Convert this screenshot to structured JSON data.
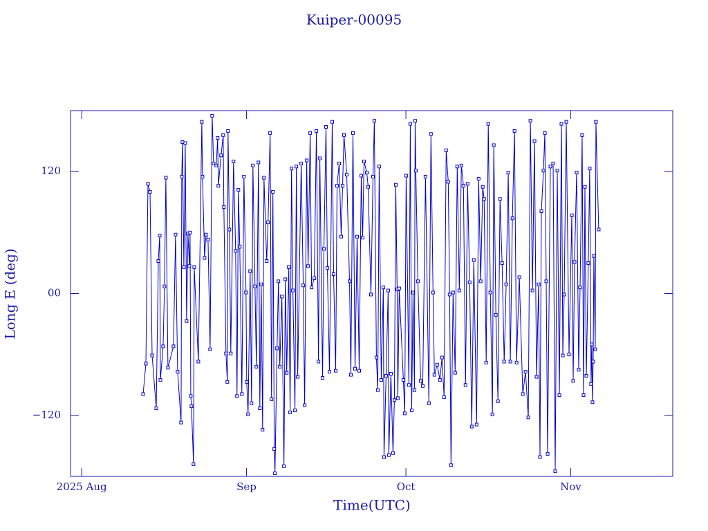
{
  "chart_data": {
    "type": "line",
    "title": "Kuiper-00095",
    "xlabel": "Time(UTC)",
    "ylabel": "Long E (deg)",
    "color": "#0000cc",
    "markers": true,
    "xlim": [
      -2.1,
      111.2
    ],
    "xticks": [
      {
        "value": 0,
        "label": "2025 Aug"
      },
      {
        "value": 31,
        "label": "Sep"
      },
      {
        "value": 61,
        "label": "Oct"
      },
      {
        "value": 92,
        "label": "Nov"
      }
    ],
    "ylim": [
      -180,
      180
    ],
    "yticks": [
      {
        "value": -120,
        "label": "−120"
      },
      {
        "value": 0,
        "label": "00"
      },
      120
    ],
    "x": [
      11.56,
      12.08,
      12.47,
      12.86,
      13.25,
      14.03,
      14.42,
      14.68,
      14.81,
      15.32,
      15.58,
      15.84,
      16.23,
      17.27,
      17.66,
      18.05,
      18.7,
      18.83,
      18.96,
      19.22,
      19.48,
      19.74,
      20.0,
      20.26,
      20.39,
      20.52,
      20.65,
      21.04,
      21.17,
      21.95,
      22.6,
      22.73,
      23.12,
      23.38,
      23.77,
      24.16,
      24.55,
      24.81,
      25.32,
      25.58,
      25.71,
      26.23,
      26.62,
      26.75,
      27.14,
      27.4,
      27.53,
      27.79,
      28.05,
      28.57,
      28.96,
      29.22,
      29.48,
      29.74,
      30.13,
      30.52,
      30.91,
      31.04,
      31.3,
      31.69,
      31.95,
      32.21,
      32.6,
      32.86,
      33.25,
      33.51,
      33.77,
      34.03,
      34.29,
      34.81,
      35.06,
      35.45,
      35.71,
      35.97,
      36.23,
      36.36,
      36.75,
      37.01,
      37.27,
      37.66,
      38.05,
      38.31,
      38.57,
      38.96,
      39.22,
      39.48,
      39.74,
      40.13,
      40.39,
      40.65,
      41.3,
      41.69,
      41.95,
      42.34,
      42.6,
      42.99,
      43.25,
      43.77,
      44.16,
      44.55,
      44.81,
      45.32,
      45.58,
      45.97,
      46.23,
      46.62,
      47.14,
      47.4,
      47.79,
      48.05,
      48.44,
      48.83,
      49.09,
      49.35,
      49.87,
      50.39,
      50.65,
      51.04,
      51.43,
      51.82,
      52.21,
      52.6,
      52.86,
      53.12,
      53.64,
      53.9,
      54.42,
      54.81,
      55.06,
      55.45,
      55.71,
      55.97,
      56.36,
      56.75,
      56.88,
      57.27,
      57.66,
      57.79,
      58.18,
      58.57,
      58.83,
      59.09,
      59.35,
      59.48,
      59.74,
      60.52,
      60.78,
      61.04,
      61.56,
      61.82,
      62.08,
      62.34,
      62.6,
      62.73,
      62.86,
      63.25,
      63.77,
      64.16,
      64.68,
      65.32,
      65.71,
      66.1,
      66.36,
      66.88,
      67.4,
      67.79,
      68.18,
      68.57,
      68.96,
      69.22,
      69.48,
      69.87,
      70.26,
      70.65,
      71.04,
      71.43,
      71.82,
      72.21,
      72.6,
      72.99,
      73.38,
      73.77,
      74.29,
      74.68,
      75.06,
      75.45,
      75.71,
      76.1,
      76.49,
      76.88,
      77.27,
      77.53,
      77.92,
      78.31,
      78.7,
      79.09,
      79.48,
      79.87,
      80.26,
      80.65,
      81.04,
      81.43,
      81.82,
      82.34,
      82.99,
      83.51,
      84.03,
      84.42,
      84.81,
      85.19,
      85.58,
      85.97,
      86.23,
      86.49,
      86.88,
      87.14,
      87.4,
      87.66,
      88.18,
      88.7,
      89.09,
      89.48,
      89.87,
      90.26,
      90.52,
      90.78,
      91.17,
      91.69,
      92.21,
      92.47,
      92.73,
      93.12,
      93.51,
      93.77,
      94.16,
      94.42,
      94.68,
      94.94,
      95.32,
      95.58,
      95.84,
      95.97,
      96.1,
      96.23,
      96.36,
      96.62,
      96.75,
      97.27
    ],
    "values": [
      -99,
      -69,
      108,
      100,
      -61,
      -113,
      32,
      57,
      -85,
      -52,
      7,
      114,
      -73,
      -52,
      58,
      -77,
      -127,
      115,
      149,
      26,
      148,
      -27,
      59,
      27,
      60,
      -101,
      -111,
      -168,
      26,
      -67,
      169,
      115,
      35,
      58,
      53,
      -55,
      175,
      128,
      126,
      153,
      106,
      136,
      156,
      85,
      -59,
      -87,
      160,
      63,
      -59,
      130,
      42,
      -101,
      102,
      46,
      -99,
      115,
      1,
      -87,
      -119,
      22,
      -108,
      126,
      7,
      -72,
      129,
      -113,
      9,
      -134,
      114,
      32,
      70,
      158,
      -104,
      100,
      -153,
      -177,
      -54,
      12,
      -72,
      -3,
      -170,
      14,
      -78,
      26,
      -117,
      123,
      3,
      -115,
      125,
      -82,
      128,
      8,
      -110,
      131,
      27,
      158,
      6,
      15,
      160,
      -67,
      133,
      -83,
      44,
      164,
      25,
      -77,
      169,
      19,
      -76,
      106,
      128,
      56,
      106,
      156,
      117,
      12,
      -80,
      158,
      -74,
      56,
      -76,
      116,
      55,
      130,
      119,
      105,
      -1,
      115,
      170,
      -63,
      -95,
      125,
      -85,
      6,
      -161,
      -81,
      3,
      -159,
      -79,
      -157,
      -105,
      107,
      4,
      -103,
      5,
      -85,
      -118,
      116,
      -90,
      167,
      -115,
      1,
      -95,
      170,
      121,
      12,
      -86,
      -91,
      115,
      -108,
      157,
      1,
      -80,
      -70,
      -85,
      -63,
      -102,
      141,
      110,
      -1,
      -169,
      1,
      -78,
      125,
      3,
      126,
      106,
      -90,
      108,
      11,
      -131,
      33,
      -129,
      113,
      12,
      105,
      93,
      -68,
      167,
      1,
      -119,
      146,
      -21,
      -106,
      93,
      30,
      -67,
      9,
      119,
      -67,
      74,
      160,
      -68,
      16,
      -99,
      -77,
      -122,
      170,
      3,
      150,
      -82,
      9,
      -161,
      81,
      121,
      158,
      12,
      -158,
      125,
      128,
      -175,
      121,
      -100,
      167,
      -61,
      -1,
      169,
      -60,
      77,
      -86,
      31,
      119,
      -75,
      6,
      156,
      -100,
      105,
      -81,
      30,
      123,
      -89,
      -50,
      -107,
      -67,
      37,
      -55,
      169,
      63
    ]
  }
}
